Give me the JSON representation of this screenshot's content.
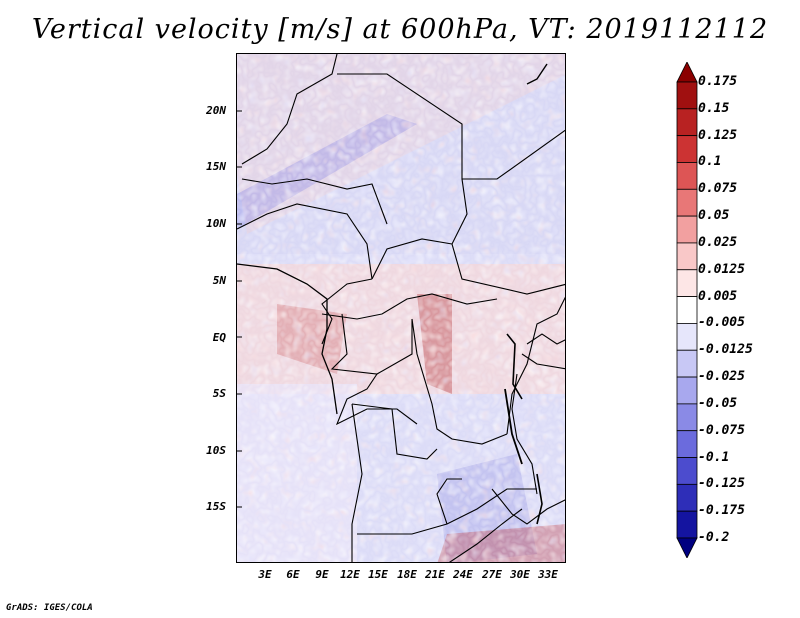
{
  "title": "Vertical velocity [m/s] at 600hPa, VT: 2019112112",
  "credit": "GrADS: IGES/COLA",
  "lat_labels": [
    "20N",
    "15N",
    "10N",
    "5N",
    "EQ",
    "5S",
    "10S",
    "15S"
  ],
  "lon_labels": [
    "3E",
    "6E",
    "9E",
    "12E",
    "15E",
    "18E",
    "21E",
    "24E",
    "27E",
    "30E",
    "33E"
  ],
  "colorbar": {
    "labels": [
      "0.175",
      "0.15",
      "0.125",
      "0.1",
      "0.075",
      "0.05",
      "0.025",
      "0.0125",
      "0.005",
      "-0.005",
      "-0.0125",
      "-0.025",
      "-0.05",
      "-0.075",
      "-0.1",
      "-0.125",
      "-0.175",
      "-0.2"
    ],
    "colors": [
      "#8b0000",
      "#a01010",
      "#b82222",
      "#cc3333",
      "#dd5555",
      "#e87777",
      "#f2a0a0",
      "#f9c8c8",
      "#fde6e6",
      "#ffffff",
      "#e6e6fb",
      "#c8c8f5",
      "#a8a8ee",
      "#8a8ae6",
      "#6b6bdd",
      "#4c4cce",
      "#2e2eb8",
      "#1414a0",
      "#000080"
    ]
  },
  "icons": {
    "map": "vertical-velocity-field-map"
  }
}
